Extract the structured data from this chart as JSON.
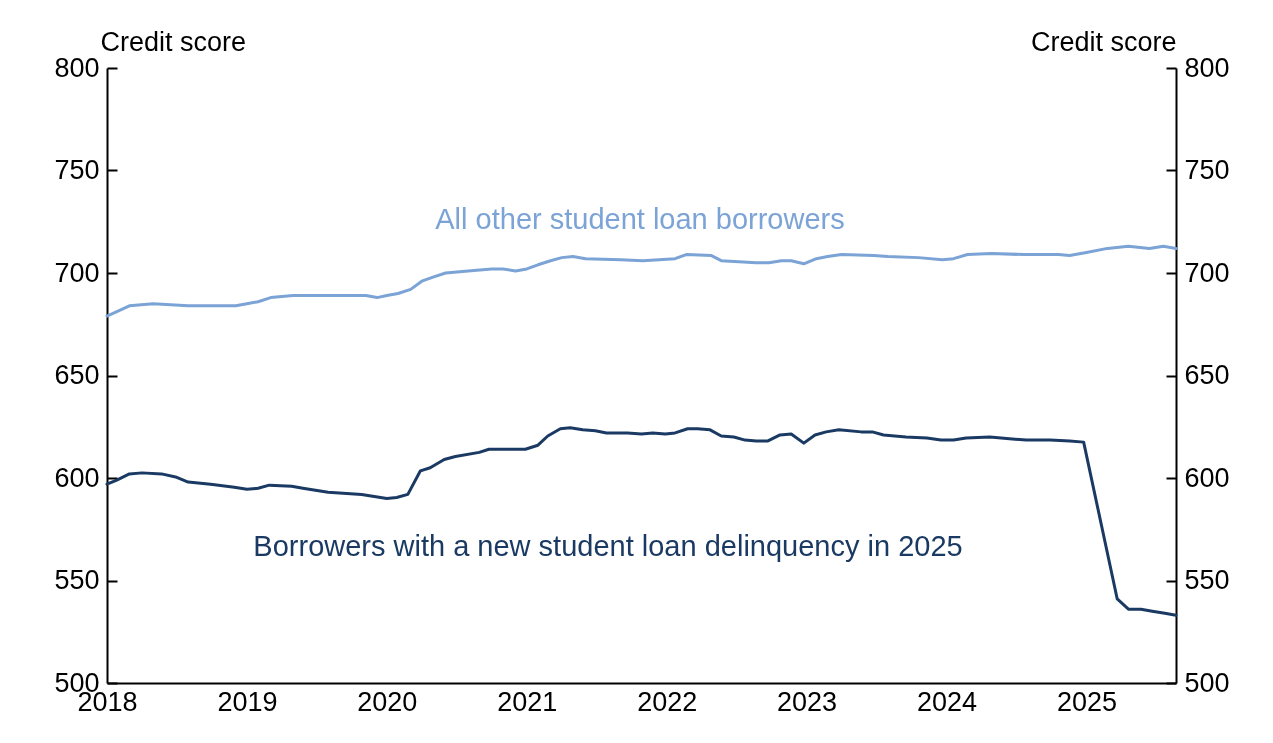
{
  "chart_data": {
    "type": "line",
    "ylabel": "Credit score",
    "y2label": "Credit score",
    "xlim": [
      2018,
      2025.64
    ],
    "xticks": [
      2018,
      2019,
      2020,
      2021,
      2022,
      2023,
      2024,
      2025
    ],
    "ylim": [
      500,
      800
    ],
    "yticks": [
      500,
      550,
      600,
      650,
      700,
      750,
      800
    ],
    "y2lim": [
      500,
      800
    ],
    "y2ticks": [
      500,
      550,
      600,
      650,
      700,
      750,
      800
    ],
    "grid": false,
    "legend": false,
    "marker": "none",
    "line_style": "solid",
    "series": [
      {
        "name": "All other student loan borrowers",
        "color": "#7ba3d6",
        "x": [
          2018.0,
          2018.16,
          2018.33,
          2018.58,
          2018.83,
          2018.92,
          2019.0,
          2019.08,
          2019.17,
          2019.33,
          2019.42,
          2019.85,
          2019.93,
          2020.0,
          2020.08,
          2020.17,
          2020.25,
          2020.33,
          2020.42,
          2020.58,
          2020.75,
          2020.83,
          2020.92,
          2021.0,
          2021.08,
          2021.17,
          2021.25,
          2021.33,
          2021.42,
          2021.67,
          2021.83,
          2022.06,
          2022.14,
          2022.32,
          2022.39,
          2022.64,
          2022.73,
          2022.82,
          2022.89,
          2022.98,
          2023.07,
          2023.15,
          2023.25,
          2023.48,
          2023.58,
          2023.8,
          2023.97,
          2024.05,
          2024.15,
          2024.32,
          2024.55,
          2024.8,
          2024.88,
          2025.0,
          2025.15,
          2025.3,
          2025.45,
          2025.55,
          2025.64
        ],
        "values": [
          679,
          684,
          685,
          684,
          684,
          684,
          685,
          686,
          688,
          689,
          689,
          689,
          688,
          689,
          690,
          692,
          696,
          698,
          700,
          701,
          702,
          702,
          701,
          702,
          704,
          706,
          707.5,
          708,
          707,
          706.5,
          706,
          707,
          709,
          708.5,
          706,
          705,
          705,
          706,
          706,
          704.5,
          707,
          708,
          709,
          708.5,
          708,
          707.5,
          706.5,
          707,
          709,
          709.5,
          709,
          709,
          708.5,
          710,
          712,
          713,
          712,
          713,
          712
        ]
      },
      {
        "name": "Borrowers with a new student loan delinquency in 2025",
        "color": "#1b3a63",
        "x": [
          2018.0,
          2018.07,
          2018.16,
          2018.25,
          2018.39,
          2018.49,
          2018.58,
          2018.74,
          2018.91,
          2019.0,
          2019.08,
          2019.16,
          2019.32,
          2019.4,
          2019.49,
          2019.58,
          2019.82,
          2019.91,
          2020.0,
          2020.07,
          2020.15,
          2020.24,
          2020.31,
          2020.41,
          2020.49,
          2020.66,
          2020.73,
          2020.82,
          2020.91,
          2020.99,
          2021.08,
          2021.15,
          2021.24,
          2021.31,
          2021.4,
          2021.49,
          2021.57,
          2021.72,
          2021.82,
          2021.9,
          2021.99,
          2022.06,
          2022.15,
          2022.22,
          2022.31,
          2022.39,
          2022.48,
          2022.56,
          2022.64,
          2022.72,
          2022.81,
          2022.89,
          2022.98,
          2023.06,
          2023.14,
          2023.23,
          2023.39,
          2023.47,
          2023.55,
          2023.71,
          2023.86,
          2023.96,
          2024.05,
          2024.14,
          2024.31,
          2024.39,
          2024.47,
          2024.57,
          2024.74,
          2024.88,
          2024.98,
          2025.22,
          2025.3,
          2025.39,
          2025.47,
          2025.56,
          2025.64
        ],
        "values": [
          597,
          599,
          602,
          602.5,
          602,
          600.5,
          598,
          597,
          595.5,
          594.5,
          595,
          596.5,
          596,
          595,
          594,
          593,
          592,
          591,
          590,
          590.5,
          592,
          603.5,
          605,
          609,
          610.5,
          612.5,
          614,
          614,
          614,
          614,
          616,
          620.5,
          624,
          624.5,
          623.5,
          623,
          622,
          622,
          621.5,
          622,
          621.5,
          622,
          624,
          624,
          623.5,
          620.5,
          620,
          618.5,
          618,
          618,
          621,
          621.5,
          617,
          621,
          622.5,
          623.5,
          622.5,
          622.5,
          621,
          620,
          619.5,
          618.5,
          618.5,
          619.5,
          620,
          619.5,
          619,
          618.5,
          618.5,
          618,
          617.5,
          541,
          536,
          536,
          535,
          534,
          533
        ]
      }
    ]
  }
}
